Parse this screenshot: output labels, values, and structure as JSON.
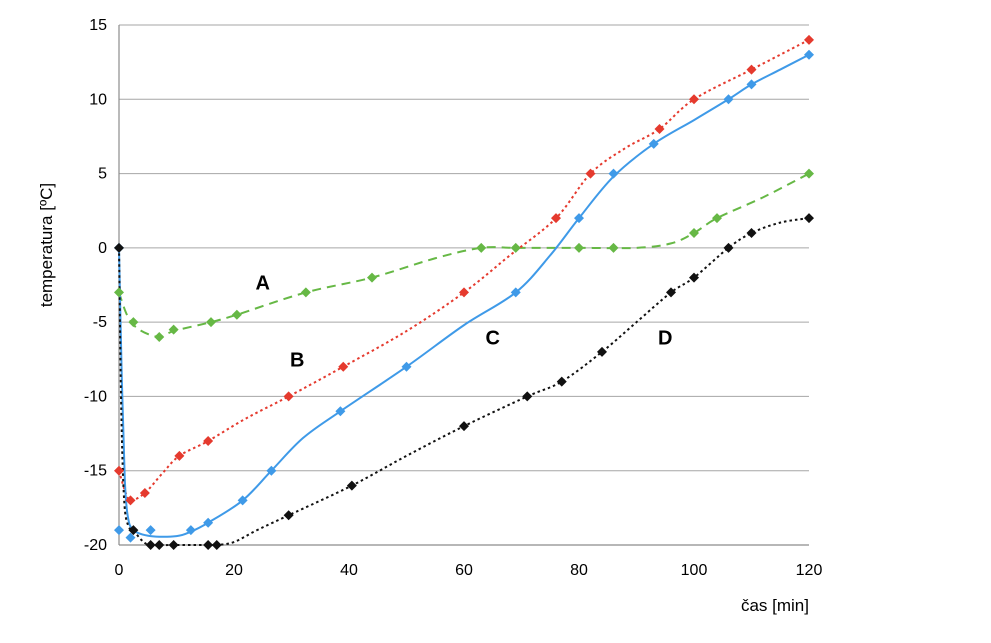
{
  "chart_data": {
    "type": "line",
    "xlabel": "čas [min]",
    "ylabel": "temperatura [ºC]",
    "xlim": [
      0,
      120
    ],
    "ylim": [
      -20,
      15
    ],
    "x_ticks": [
      "0",
      "20",
      "40",
      "60",
      "80",
      "100",
      "120"
    ],
    "y_ticks": [
      "-20",
      "-15",
      "-10",
      "-5",
      "0",
      "5",
      "10",
      "15"
    ],
    "grid": "horizontal",
    "legend": "none",
    "series": [
      {
        "name": "A",
        "color": "#66b845",
        "line_style": "dashed",
        "marker": "diamond",
        "points": [
          [
            0,
            -3
          ],
          [
            2.5,
            -5
          ],
          [
            7,
            -6
          ],
          [
            9.5,
            -5.5
          ],
          [
            16,
            -5
          ],
          [
            20.5,
            -4.5
          ],
          [
            32.5,
            -3
          ],
          [
            44,
            -2
          ],
          [
            63,
            0
          ],
          [
            69,
            0
          ],
          [
            80,
            0
          ],
          [
            86,
            0
          ],
          [
            100,
            1
          ],
          [
            104,
            2
          ],
          [
            120,
            5
          ]
        ],
        "curve": [
          [
            0,
            -3
          ],
          [
            1.5,
            -4.6
          ],
          [
            3.5,
            -5.5
          ],
          [
            7,
            -6
          ],
          [
            9.5,
            -5.6
          ],
          [
            16,
            -5
          ],
          [
            20.5,
            -4.5
          ],
          [
            32.5,
            -3
          ],
          [
            44,
            -2
          ],
          [
            55,
            -0.7
          ],
          [
            63,
            0
          ],
          [
            69,
            0
          ],
          [
            80,
            0
          ],
          [
            90,
            0
          ],
          [
            96,
            0.3
          ],
          [
            100,
            1
          ],
          [
            104,
            2
          ],
          [
            112,
            3.4
          ],
          [
            120,
            5
          ]
        ]
      },
      {
        "name": "B",
        "color": "#e53a2e",
        "line_style": "dotted",
        "marker": "diamond",
        "points": [
          [
            0,
            -15
          ],
          [
            2,
            -17
          ],
          [
            4.5,
            -16.5
          ],
          [
            10.5,
            -14
          ],
          [
            15.5,
            -13
          ],
          [
            29.5,
            -10
          ],
          [
            39,
            -8
          ],
          [
            60,
            -3
          ],
          [
            76,
            2
          ],
          [
            82,
            5
          ],
          [
            94,
            8
          ],
          [
            100,
            10
          ],
          [
            110,
            12
          ],
          [
            120,
            14
          ]
        ],
        "curve": [
          [
            0,
            -15
          ],
          [
            1,
            -16.3
          ],
          [
            2,
            -17
          ],
          [
            4.5,
            -16.5
          ],
          [
            7.5,
            -15.2
          ],
          [
            10.5,
            -14
          ],
          [
            15.5,
            -13
          ],
          [
            22,
            -11.5
          ],
          [
            29.5,
            -10
          ],
          [
            39,
            -8
          ],
          [
            50,
            -5.6
          ],
          [
            60,
            -3
          ],
          [
            68,
            -0.5
          ],
          [
            76,
            2
          ],
          [
            82,
            5
          ],
          [
            88,
            6.7
          ],
          [
            94,
            8
          ],
          [
            100,
            10
          ],
          [
            110,
            12
          ],
          [
            120,
            14
          ]
        ]
      },
      {
        "name": "C",
        "color": "#3f9ae8",
        "line_style": "solid",
        "marker": "diamond",
        "points": [
          [
            0,
            0
          ],
          [
            0,
            -19
          ],
          [
            2,
            -19.5
          ],
          [
            5.5,
            -19
          ],
          [
            12.5,
            -19
          ],
          [
            15.5,
            -18.5
          ],
          [
            21.5,
            -17
          ],
          [
            26.5,
            -15
          ],
          [
            38.5,
            -11
          ],
          [
            50,
            -8
          ],
          [
            69,
            -3
          ],
          [
            80,
            2
          ],
          [
            86,
            5
          ],
          [
            93,
            7
          ],
          [
            106,
            10
          ],
          [
            110,
            11
          ],
          [
            120,
            13
          ]
        ],
        "curve": [
          [
            0,
            0
          ],
          [
            0.5,
            -9
          ],
          [
            1,
            -15.5
          ],
          [
            1.5,
            -18
          ],
          [
            2.5,
            -19
          ],
          [
            5.5,
            -19.4
          ],
          [
            10,
            -19.4
          ],
          [
            12.5,
            -19.1
          ],
          [
            15.5,
            -18.5
          ],
          [
            21.5,
            -17
          ],
          [
            26.5,
            -15
          ],
          [
            32,
            -12.8
          ],
          [
            38.5,
            -11
          ],
          [
            50,
            -8
          ],
          [
            60,
            -5.2
          ],
          [
            69,
            -3
          ],
          [
            75,
            -0.5
          ],
          [
            80,
            2
          ],
          [
            86,
            4.8
          ],
          [
            93,
            7
          ],
          [
            100,
            8.6
          ],
          [
            106,
            10
          ],
          [
            110,
            11
          ],
          [
            115,
            12
          ],
          [
            120,
            13
          ]
        ]
      },
      {
        "name": "D",
        "color": "#111111",
        "line_style": "dotted",
        "marker": "diamond",
        "points": [
          [
            0,
            0
          ],
          [
            2.5,
            -19
          ],
          [
            5.5,
            -20
          ],
          [
            7,
            -20
          ],
          [
            9.5,
            -20
          ],
          [
            15.5,
            -20
          ],
          [
            17,
            -20
          ],
          [
            29.5,
            -18
          ],
          [
            40.5,
            -16
          ],
          [
            60,
            -12
          ],
          [
            71,
            -10
          ],
          [
            77,
            -9
          ],
          [
            84,
            -7
          ],
          [
            96,
            -3
          ],
          [
            100,
            -2
          ],
          [
            106,
            0
          ],
          [
            110,
            1
          ],
          [
            120,
            2
          ]
        ],
        "curve": [
          [
            0,
            0
          ],
          [
            0.4,
            -11
          ],
          [
            0.9,
            -17
          ],
          [
            1.6,
            -18.7
          ],
          [
            2.5,
            -19
          ],
          [
            4,
            -19.7
          ],
          [
            5.5,
            -20
          ],
          [
            9.5,
            -20
          ],
          [
            15.5,
            -20
          ],
          [
            17,
            -20
          ],
          [
            20,
            -19.8
          ],
          [
            24,
            -19
          ],
          [
            29.5,
            -18
          ],
          [
            40.5,
            -16
          ],
          [
            50,
            -14
          ],
          [
            60,
            -12
          ],
          [
            71,
            -10
          ],
          [
            77,
            -9
          ],
          [
            84,
            -7
          ],
          [
            90,
            -5
          ],
          [
            96,
            -3
          ],
          [
            100,
            -2
          ],
          [
            106,
            0
          ],
          [
            110,
            1
          ],
          [
            115,
            1.7
          ],
          [
            120,
            2
          ]
        ]
      }
    ],
    "annotations": [
      {
        "text": "A",
        "x": 25,
        "y": -2.8
      },
      {
        "text": "B",
        "x": 31,
        "y": -8
      },
      {
        "text": "C",
        "x": 65,
        "y": -6.5
      },
      {
        "text": "D",
        "x": 95,
        "y": -6.5
      }
    ]
  }
}
